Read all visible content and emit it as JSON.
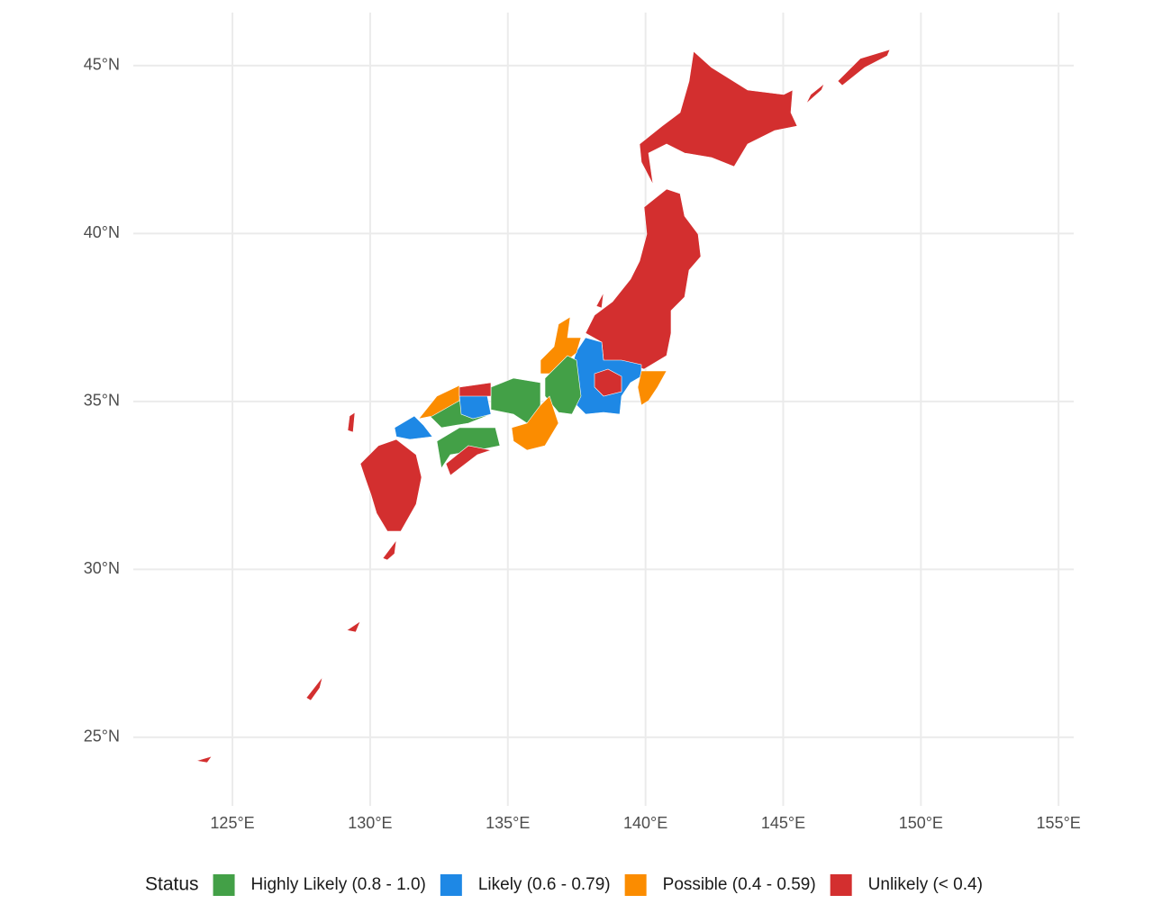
{
  "chart_data": {
    "type": "map",
    "xlim": [
      121.4,
      155.55
    ],
    "ylim": [
      22.96,
      46.58
    ],
    "xticks": [
      {
        "value": 125,
        "label": "125°E"
      },
      {
        "value": 130,
        "label": "130°E"
      },
      {
        "value": 135,
        "label": "135°E"
      },
      {
        "value": 140,
        "label": "140°E"
      },
      {
        "value": 145,
        "label": "145°E"
      },
      {
        "value": 150,
        "label": "150°E"
      },
      {
        "value": 155,
        "label": "155°E"
      }
    ],
    "yticks": [
      {
        "value": 25,
        "label": "25°N"
      },
      {
        "value": 30,
        "label": "30°N"
      },
      {
        "value": 35,
        "label": "35°N"
      },
      {
        "value": 40,
        "label": "40°N"
      },
      {
        "value": 45,
        "label": "45°N"
      }
    ],
    "grid": true,
    "legend": {
      "title": "Status",
      "position": "bottom",
      "entries": [
        {
          "name": "Highly Likely (0.8 - 1.0)",
          "color": "#43a047"
        },
        {
          "name": "Likely (0.6 - 0.79)",
          "color": "#1e88e5"
        },
        {
          "name": "Possible (0.4 - 0.59)",
          "color": "#fb8c00"
        },
        {
          "name": "Unlikely (< 0.4)",
          "color": "#d32f2f"
        }
      ]
    }
  }
}
